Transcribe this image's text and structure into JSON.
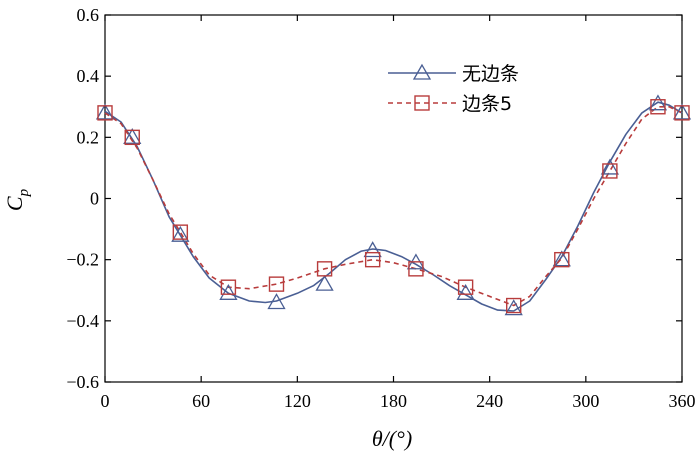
{
  "chart_data": {
    "type": "line",
    "xlabel": "θ/(°)",
    "ylabel": "C_p",
    "xlim": [
      0,
      360
    ],
    "ylim": [
      -0.6,
      0.6
    ],
    "x_ticks": [
      0,
      60,
      120,
      180,
      240,
      300,
      360
    ],
    "y_ticks": [
      -0.6,
      -0.4,
      -0.2,
      0,
      0.2,
      0.4,
      0.6
    ],
    "x_tick_labels": [
      "0",
      "60",
      "120",
      "180",
      "240",
      "300",
      "360"
    ],
    "y_tick_labels": [
      "−0.6",
      "−0.4",
      "−0.2",
      "0",
      "0.2",
      "0.4",
      "0.6"
    ],
    "grid": false,
    "legend_position": "top-right",
    "series": [
      {
        "name": "无边条",
        "color": "#4a5f94",
        "line_style": "solid",
        "marker": "triangle",
        "x": [
          0,
          17,
          47,
          77,
          107,
          137,
          167,
          194,
          225,
          255,
          285,
          315,
          345,
          360
        ],
        "y": [
          0.28,
          0.2,
          -0.12,
          -0.31,
          -0.34,
          -0.28,
          -0.17,
          -0.21,
          -0.31,
          -0.36,
          -0.2,
          0.1,
          0.31,
          0.28
        ],
        "curve": [
          [
            0,
            0.285
          ],
          [
            10,
            0.25
          ],
          [
            20,
            0.17
          ],
          [
            30,
            0.06
          ],
          [
            40,
            -0.06
          ],
          [
            47,
            -0.12
          ],
          [
            55,
            -0.19
          ],
          [
            65,
            -0.26
          ],
          [
            77,
            -0.31
          ],
          [
            90,
            -0.335
          ],
          [
            100,
            -0.34
          ],
          [
            107,
            -0.335
          ],
          [
            120,
            -0.31
          ],
          [
            130,
            -0.285
          ],
          [
            140,
            -0.245
          ],
          [
            150,
            -0.2
          ],
          [
            160,
            -0.172
          ],
          [
            167,
            -0.165
          ],
          [
            175,
            -0.17
          ],
          [
            185,
            -0.19
          ],
          [
            194,
            -0.215
          ],
          [
            205,
            -0.25
          ],
          [
            215,
            -0.285
          ],
          [
            225,
            -0.315
          ],
          [
            235,
            -0.345
          ],
          [
            245,
            -0.365
          ],
          [
            255,
            -0.368
          ],
          [
            265,
            -0.335
          ],
          [
            275,
            -0.265
          ],
          [
            285,
            -0.19
          ],
          [
            295,
            -0.09
          ],
          [
            305,
            0.02
          ],
          [
            315,
            0.12
          ],
          [
            325,
            0.21
          ],
          [
            335,
            0.28
          ],
          [
            345,
            0.315
          ],
          [
            352,
            0.305
          ],
          [
            360,
            0.28
          ]
        ]
      },
      {
        "name": "边条5",
        "color": "#b83c3c",
        "line_style": "dashed",
        "marker": "square",
        "x": [
          0,
          17,
          47,
          77,
          107,
          137,
          167,
          194,
          225,
          255,
          285,
          315,
          345,
          360
        ],
        "y": [
          0.28,
          0.2,
          -0.11,
          -0.29,
          -0.28,
          -0.23,
          -0.2,
          -0.23,
          -0.29,
          -0.35,
          -0.2,
          0.09,
          0.3,
          0.28
        ],
        "curve": [
          [
            0,
            0.28
          ],
          [
            10,
            0.245
          ],
          [
            20,
            0.165
          ],
          [
            30,
            0.06
          ],
          [
            40,
            -0.05
          ],
          [
            47,
            -0.11
          ],
          [
            55,
            -0.18
          ],
          [
            65,
            -0.25
          ],
          [
            77,
            -0.29
          ],
          [
            90,
            -0.295
          ],
          [
            107,
            -0.28
          ],
          [
            120,
            -0.26
          ],
          [
            137,
            -0.23
          ],
          [
            150,
            -0.215
          ],
          [
            167,
            -0.2
          ],
          [
            180,
            -0.21
          ],
          [
            194,
            -0.23
          ],
          [
            210,
            -0.255
          ],
          [
            225,
            -0.29
          ],
          [
            240,
            -0.32
          ],
          [
            255,
            -0.35
          ],
          [
            265,
            -0.32
          ],
          [
            275,
            -0.255
          ],
          [
            285,
            -0.195
          ],
          [
            295,
            -0.1
          ],
          [
            305,
            0.0
          ],
          [
            315,
            0.09
          ],
          [
            325,
            0.18
          ],
          [
            335,
            0.26
          ],
          [
            345,
            0.3
          ],
          [
            352,
            0.3
          ],
          [
            360,
            0.28
          ]
        ]
      }
    ]
  }
}
